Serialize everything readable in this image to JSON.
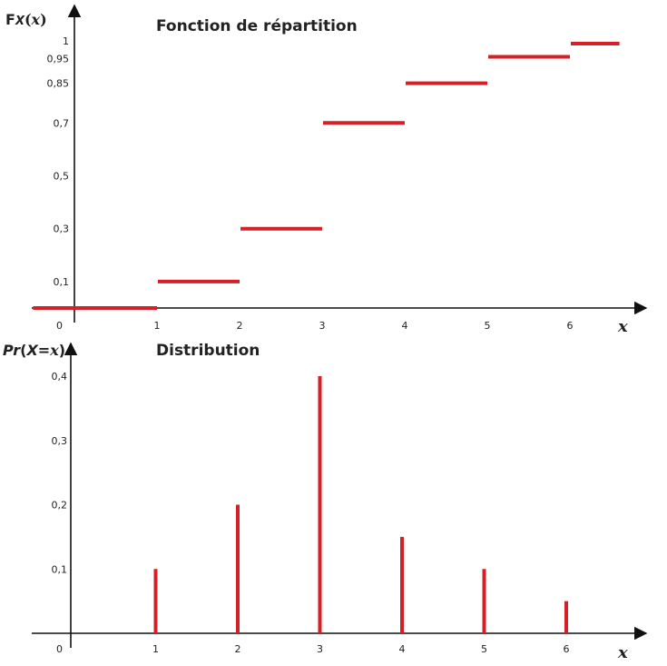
{
  "chart_data": [
    {
      "type": "line",
      "title": "Fonction de répartition",
      "ylabel_parts": [
        "F",
        "X",
        "(",
        "x",
        ")"
      ],
      "xlabel": "x",
      "origin_label": "0",
      "x_ticks": [
        "1",
        "2",
        "3",
        "4",
        "5",
        "6"
      ],
      "y_ticks": [
        "0,1",
        "0,3",
        "0,5",
        "0,7",
        "0,85",
        "0,95",
        "1"
      ],
      "y_tick_values": [
        0.1,
        0.3,
        0.5,
        0.7,
        0.85,
        0.95,
        1
      ],
      "xlim": [
        -0.5,
        6.8
      ],
      "ylim": [
        0,
        1.05
      ],
      "steps": [
        {
          "x_start": -0.5,
          "x_end": 1,
          "y": 0
        },
        {
          "x_start": 1,
          "x_end": 2,
          "y": 0.1
        },
        {
          "x_start": 2,
          "x_end": 3,
          "y": 0.3
        },
        {
          "x_start": 3,
          "x_end": 4,
          "y": 0.7
        },
        {
          "x_start": 4,
          "x_end": 5,
          "y": 0.85
        },
        {
          "x_start": 5,
          "x_end": 6,
          "y": 0.95
        },
        {
          "x_start": 6,
          "x_end": 6.6,
          "y": 1
        }
      ],
      "color": "#d62027"
    },
    {
      "type": "bar",
      "title": "Distribution",
      "ylabel_parts": [
        "Pr",
        "(",
        "X",
        "=",
        "x",
        ")"
      ],
      "xlabel": "x",
      "origin_label": "0",
      "x_ticks": [
        "1",
        "2",
        "3",
        "4",
        "5",
        "6"
      ],
      "y_ticks": [
        "0,1",
        "0,2",
        "0,3",
        "0,4"
      ],
      "y_tick_values": [
        0.1,
        0.2,
        0.3,
        0.4
      ],
      "categories": [
        1,
        2,
        3,
        4,
        5,
        6
      ],
      "values": [
        0.1,
        0.2,
        0.4,
        0.15,
        0.1,
        0.05
      ],
      "ylim": [
        0,
        0.4
      ],
      "color": "#d62027"
    }
  ]
}
